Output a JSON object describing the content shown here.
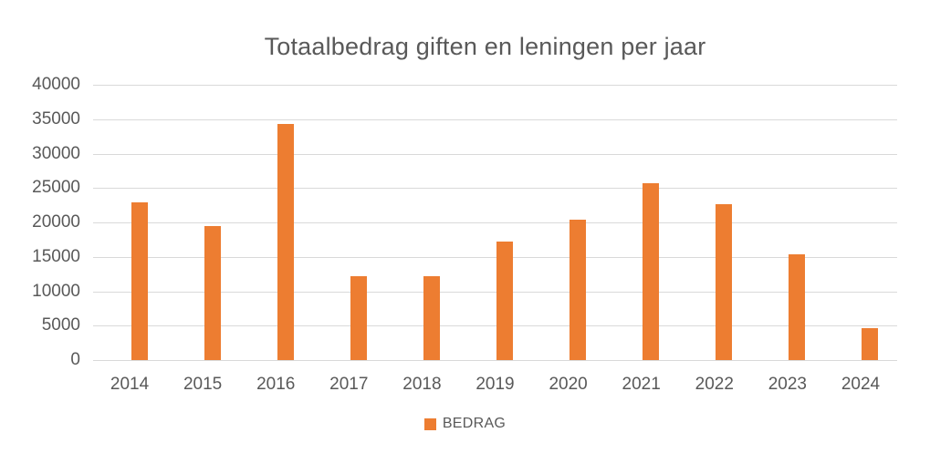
{
  "chart_data": {
    "type": "bar",
    "title": "Totaalbedrag giften en leningen per jaar",
    "categories": [
      "2014",
      "2015",
      "2016",
      "2017",
      "2018",
      "2019",
      "2020",
      "2021",
      "2022",
      "2023",
      "2024"
    ],
    "series": [
      {
        "name": "BEDRAG",
        "color": "#ED7D31",
        "values": [
          22900,
          19500,
          34350,
          12150,
          12250,
          17250,
          20350,
          25650,
          22650,
          15300,
          4700
        ]
      }
    ],
    "xlabel": "",
    "ylabel": "",
    "ylim": [
      0,
      40000
    ],
    "ytick_step": 5000,
    "yticks": [
      0,
      5000,
      10000,
      15000,
      20000,
      25000,
      30000,
      35000,
      40000
    ],
    "grid": "horizontal",
    "legend_position": "bottom",
    "colors": {
      "text": "#595959",
      "gridline": "#D9D9D9",
      "background": "#FFFFFF"
    }
  }
}
